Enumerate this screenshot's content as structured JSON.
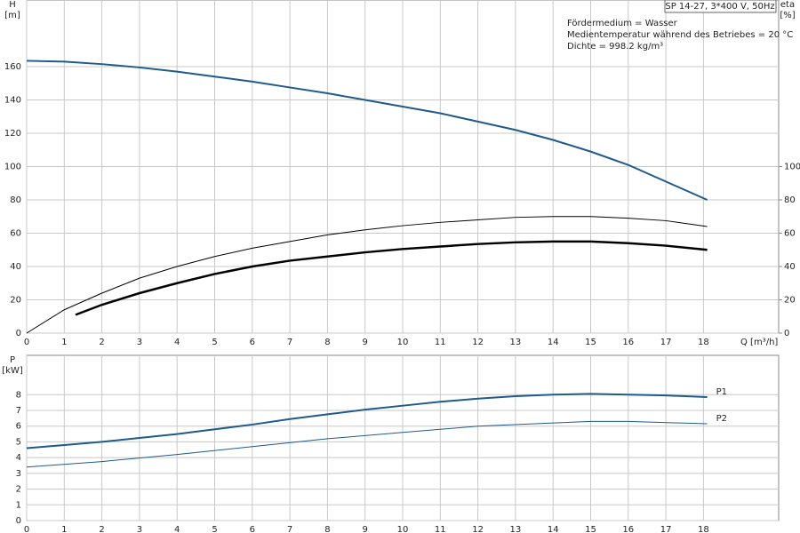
{
  "chart_data": [
    {
      "type": "line",
      "title": "SP 14-27, 3*400 V, 50Hz",
      "annotations": [
        "Fördermedium = Wasser",
        "Medientemperatur während des Betriebes = 20 °C",
        "Dichte = 998.2 kg/m³"
      ],
      "y_label": "H",
      "y_unit": "[m]",
      "y2_label": "eta",
      "y2_unit": "[%]",
      "x_label": "Q [m³/h]",
      "xlim": [
        0,
        20
      ],
      "xticks": [
        0,
        1,
        2,
        3,
        4,
        5,
        6,
        7,
        8,
        9,
        10,
        11,
        12,
        13,
        14,
        15,
        16,
        17,
        18
      ],
      "ylim": [
        0,
        200
      ],
      "yticks": [
        0,
        20,
        40,
        60,
        80,
        100,
        120,
        140,
        160
      ],
      "y2lim": [
        0,
        200
      ],
      "y2ticks": [
        0,
        20,
        40,
        60,
        80,
        100
      ],
      "grid": true,
      "series": [
        {
          "color": "#1f5a8c",
          "width": 2,
          "x": [
            0,
            1,
            2,
            3,
            4,
            5,
            6,
            7,
            8,
            9,
            10,
            11,
            12,
            13,
            14,
            15,
            16,
            17,
            18.1
          ],
          "values": [
            163.5,
            163,
            161.5,
            159.5,
            157,
            154,
            151,
            147.5,
            144,
            140,
            136,
            132,
            127,
            122,
            116,
            109,
            101,
            91,
            80
          ]
        },
        {
          "color": "#000000",
          "width": 1,
          "axis": "y2",
          "x": [
            0,
            1,
            2,
            3,
            4,
            5,
            6,
            7,
            8,
            9,
            10,
            11,
            12,
            13,
            14,
            15,
            16,
            17,
            18.1
          ],
          "values": [
            0,
            14,
            24,
            33,
            40,
            46,
            51,
            55,
            59,
            62,
            64.5,
            66.5,
            68,
            69.5,
            70,
            70,
            69,
            67.5,
            64
          ]
        },
        {
          "color": "#000000",
          "width": 2.5,
          "axis": "y2",
          "x": [
            1.3,
            2,
            3,
            4,
            5,
            6,
            7,
            8,
            9,
            10,
            11,
            12,
            13,
            14,
            15,
            16,
            17,
            18.1
          ],
          "values": [
            11,
            17,
            24,
            30,
            35.5,
            40,
            43.5,
            46,
            48.5,
            50.5,
            52,
            53.5,
            54.5,
            55,
            55,
            54,
            52.5,
            50
          ]
        }
      ]
    },
    {
      "type": "line",
      "y_label": "P",
      "y_unit": "[kW]",
      "xlim": [
        0,
        20
      ],
      "xticks": [
        0,
        1,
        2,
        3,
        4,
        5,
        6,
        7,
        8,
        9,
        10,
        11,
        12,
        13,
        14,
        15,
        16,
        17,
        18
      ],
      "ylim": [
        0,
        10.5
      ],
      "yticks": [
        0,
        1,
        2,
        3,
        4,
        5,
        6,
        7,
        8
      ],
      "grid": true,
      "series": [
        {
          "name": "P1",
          "color": "#1f5a8c",
          "width": 2,
          "x": [
            0,
            1,
            2,
            3,
            4,
            5,
            6,
            7,
            8,
            9,
            10,
            11,
            12,
            13,
            14,
            15,
            16,
            17,
            18.1
          ],
          "values": [
            4.6,
            4.8,
            5.0,
            5.25,
            5.5,
            5.8,
            6.1,
            6.45,
            6.75,
            7.05,
            7.3,
            7.55,
            7.75,
            7.9,
            8.0,
            8.05,
            8.0,
            7.95,
            7.85
          ]
        },
        {
          "name": "P2",
          "color": "#1f5a8c",
          "width": 1,
          "x": [
            0,
            2,
            4,
            6,
            8,
            10,
            12,
            14,
            15,
            16,
            18.1
          ],
          "values": [
            3.4,
            3.75,
            4.2,
            4.7,
            5.2,
            5.6,
            6.0,
            6.2,
            6.3,
            6.3,
            6.15
          ]
        }
      ]
    }
  ]
}
